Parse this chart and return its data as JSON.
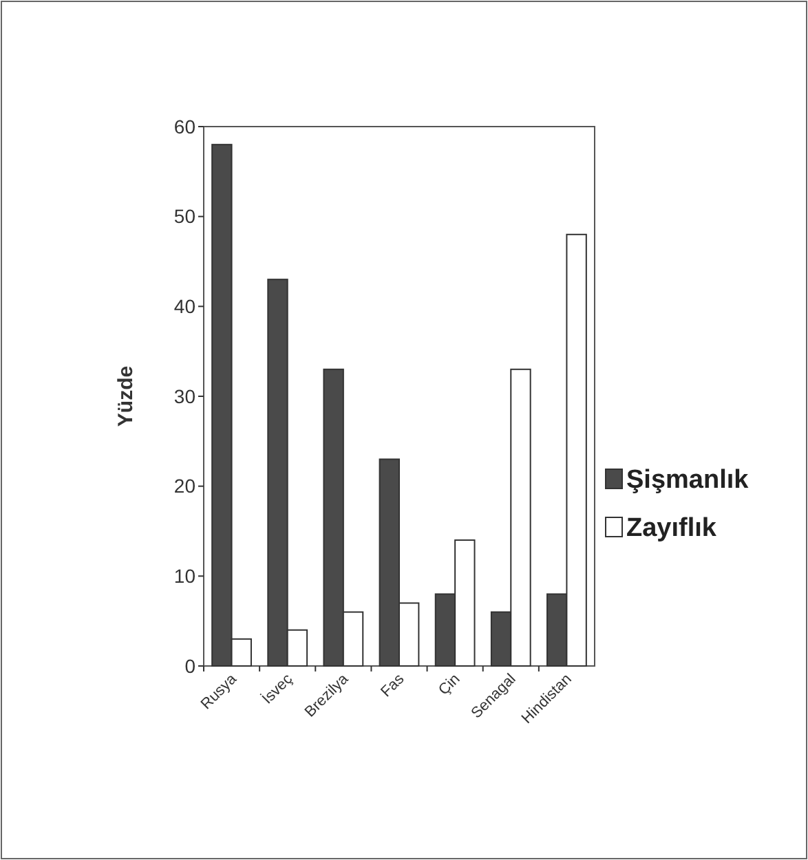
{
  "chart_data": {
    "type": "bar",
    "ylabel": "Yüzde",
    "categories": [
      "Rusya",
      "İsveç",
      "Brezilya",
      "Fas",
      "Çin",
      "Senagal",
      "Hindistan"
    ],
    "series": [
      {
        "name": "Şişmanlık",
        "color": "#4a4a4a",
        "values": [
          58,
          43,
          33,
          23,
          8,
          6,
          8
        ]
      },
      {
        "name": "Zayıflık",
        "color": "#ffffff",
        "values": [
          3,
          4,
          6,
          7,
          14,
          33,
          48
        ]
      }
    ],
    "ylim": [
      0,
      60
    ],
    "yticks": [
      0,
      10,
      20,
      30,
      40,
      50,
      60
    ],
    "grid": false,
    "legend": "right"
  }
}
